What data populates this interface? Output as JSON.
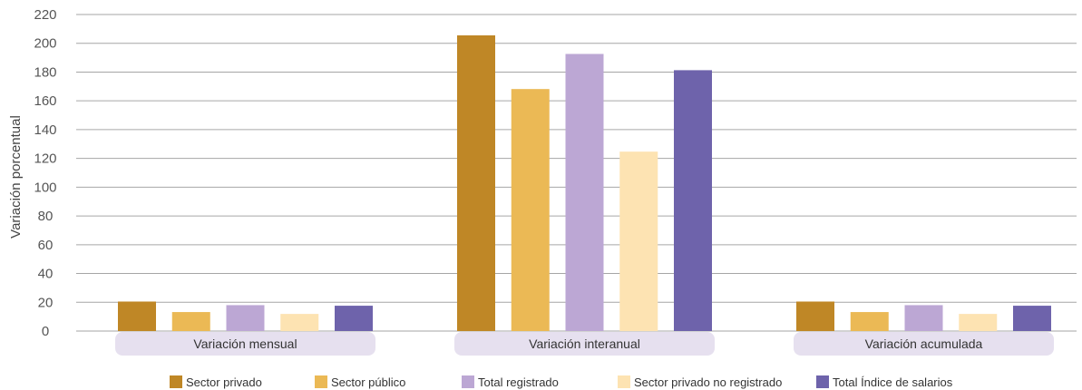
{
  "chart_data": {
    "type": "bar",
    "ylabel": "Variación porcentual",
    "xlabel": "",
    "ylim": [
      0,
      220
    ],
    "yticks": [
      0,
      20,
      40,
      60,
      80,
      100,
      120,
      140,
      160,
      180,
      200,
      220
    ],
    "grid": true,
    "legend_position": "bottom",
    "categories": [
      "Variación mensual",
      "Variación interanual",
      "Variación acumulada"
    ],
    "series": [
      {
        "name": "Sector privado",
        "color": "#bf8726",
        "values": [
          20.5,
          205.5,
          20.5
        ]
      },
      {
        "name": "Sector público",
        "color": "#ebb955",
        "values": [
          13.2,
          168.2,
          13.2
        ]
      },
      {
        "name": "Total registrado",
        "color": "#bca7d4",
        "values": [
          18.0,
          192.6,
          18.0
        ]
      },
      {
        "name": "Sector privado no registrado",
        "color": "#fde3b2",
        "values": [
          11.9,
          124.7,
          11.9
        ]
      },
      {
        "name": "Total Índice de salarios",
        "color": "#6e63ab",
        "values": [
          17.6,
          181.3,
          17.6
        ]
      }
    ]
  }
}
